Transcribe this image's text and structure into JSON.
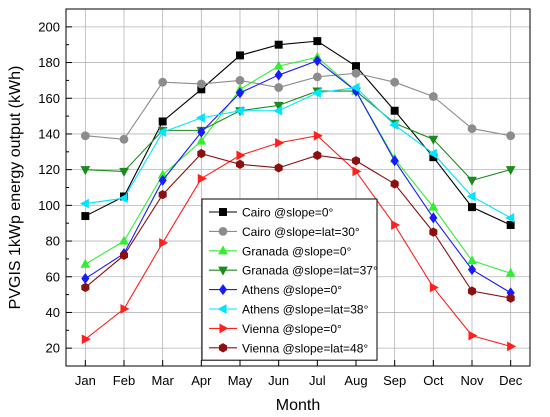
{
  "chart_data": {
    "type": "line",
    "title": "",
    "xlabel": "Month",
    "ylabel": "PVGIS 1kWp energy output (kWh)",
    "ylim": [
      10,
      210
    ],
    "yticks": [
      20,
      40,
      60,
      80,
      100,
      120,
      140,
      160,
      180,
      200
    ],
    "categories": [
      "Jan",
      "Feb",
      "Mar",
      "Apr",
      "May",
      "Jun",
      "Jul",
      "Aug",
      "Sep",
      "Oct",
      "Nov",
      "Dec"
    ],
    "grid": true,
    "legend_position": "center-right",
    "series": [
      {
        "name": "Cairo @slope=0°",
        "color": "#000000",
        "marker": "square",
        "fill": true,
        "values": [
          94,
          105,
          147,
          165,
          184,
          190,
          192,
          178,
          153,
          127,
          99,
          89
        ]
      },
      {
        "name": "Cairo @slope=lat=30°",
        "color": "#8c8c8c",
        "marker": "circle",
        "fill": true,
        "values": [
          139,
          137,
          169,
          168,
          170,
          166,
          172,
          174,
          169,
          161,
          143,
          139
        ]
      },
      {
        "name": "Granada @slope=0°",
        "color": "#33ee33",
        "marker": "triangle-up",
        "fill": true,
        "values": [
          67,
          80,
          117,
          136,
          165,
          178,
          183,
          164,
          126,
          99,
          69,
          62
        ]
      },
      {
        "name": "Granada @slope=lat=37°",
        "color": "#1c8a1c",
        "marker": "triangle-down",
        "fill": true,
        "values": [
          120,
          119,
          142,
          142,
          153,
          156,
          164,
          164,
          146,
          137,
          114,
          120
        ]
      },
      {
        "name": "Athens @slope=0°",
        "color": "#1a1aff",
        "marker": "diamond",
        "fill": true,
        "values": [
          59,
          73,
          114,
          141,
          163,
          173,
          181,
          164,
          125,
          93,
          64,
          51
        ]
      },
      {
        "name": "Athens @slope=lat=38°",
        "color": "#00e5ff",
        "marker": "triangle-left",
        "fill": true,
        "values": [
          101,
          104,
          141,
          149,
          153,
          153,
          163,
          166,
          145,
          129,
          105,
          93
        ]
      },
      {
        "name": "Vienna @slope=0°",
        "color": "#ff2020",
        "marker": "triangle-right",
        "fill": true,
        "values": [
          25,
          42,
          79,
          115,
          128,
          135,
          139,
          119,
          89,
          54,
          27,
          21
        ]
      },
      {
        "name": "Vienna @slope=lat=48°",
        "color": "#8b1010",
        "marker": "hexagon",
        "fill": true,
        "values": [
          54,
          72,
          106,
          129,
          123,
          121,
          128,
          125,
          112,
          85,
          52,
          48
        ]
      }
    ]
  }
}
